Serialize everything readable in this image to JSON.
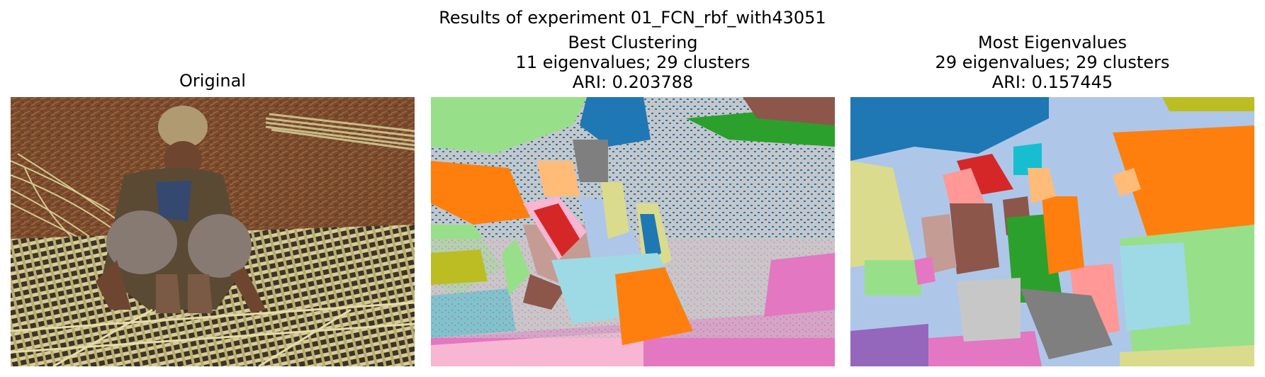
{
  "figure": {
    "suptitle": "Results of experiment 01_FCN_rbf_with43051"
  },
  "panels": [
    {
      "title_lines": [
        "Original"
      ],
      "image": "photograph: man sitting on dirt ground weaving split-bamboo mat"
    },
    {
      "title_lines": [
        "Best Clustering",
        "11 eigenvalues; 29 clusters",
        "ARI: 0.203788"
      ],
      "image": "segmentation map (noisy cluster-color regions)"
    },
    {
      "title_lines": [
        "Most Eigenvalues",
        "29 eigenvalues; 29 clusters",
        "ARI: 0.157445"
      ],
      "image": "segmentation map (smoother cluster-color regions)"
    }
  ],
  "colors": {
    "blue": "#1f77b4",
    "lightblue": "#aec7e8",
    "orange": "#ff7f0e",
    "peach": "#ffbb78",
    "green": "#2ca02c",
    "lightgreen": "#98df8a",
    "red": "#d62728",
    "pink": "#ff9896",
    "purple": "#9467bd",
    "brown": "#8c564b",
    "tan": "#c49c94",
    "magenta": "#e377c2",
    "lightpink": "#f7b6d2",
    "gray": "#7f7f7f",
    "lightgray": "#c7c7c7",
    "olive": "#bcbd22",
    "khaki": "#dbdb8d",
    "cyan": "#17becf",
    "lightcyan": "#9edae5"
  }
}
